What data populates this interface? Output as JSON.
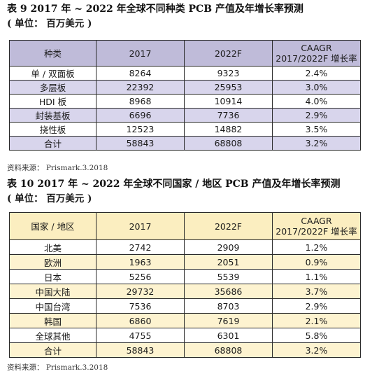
{
  "table1": {
    "title": "表 9   2017 年 ~ 2022 年全球不同种类 PCB 产值及年增长率预测",
    "unit": "( 单位： 百万美元 )",
    "headers": [
      "种类",
      "2017",
      "2022F",
      "CAAGR",
      "2017/2022F 增长率"
    ],
    "rows": [
      [
        "单 / 双面板",
        "8264",
        "9323",
        "2.4%"
      ],
      [
        "多层板",
        "22392",
        "25953",
        "3.0%"
      ],
      [
        "HDI 板",
        "8968",
        "10914",
        "4.0%"
      ],
      [
        "封装基板",
        "6696",
        "7736",
        "2.9%"
      ],
      [
        "挠性板",
        "12523",
        "14882",
        "3.5%"
      ],
      [
        "合计",
        "58843",
        "68808",
        "3.2%"
      ]
    ],
    "source": "资料来源： Prismark.3.2018",
    "colors": {
      "header": "#bfbbd9",
      "stripe": "#d8d5ec"
    }
  },
  "table2": {
    "title": "表 10   2017 年 ~ 2022 年全球不同国家 / 地区 PCB 产值及年增长率预测",
    "unit": "( 单位： 百万美元 )",
    "headers": [
      "国家 / 地区",
      "2017",
      "2022F",
      "CAAGR",
      "2017/2022F 增长率"
    ],
    "rows": [
      [
        "北美",
        "2742",
        "2909",
        "1.2%"
      ],
      [
        "欧洲",
        "1963",
        "2051",
        "0.9%"
      ],
      [
        "日本",
        "5256",
        "5539",
        "1.1%"
      ],
      [
        "中国大陆",
        "29732",
        "35686",
        "3.7%"
      ],
      [
        "中国台湾",
        "7536",
        "8703",
        "2.9%"
      ],
      [
        "韩国",
        "6860",
        "7619",
        "2.1%"
      ],
      [
        "全球其他",
        "4755",
        "6301",
        "5.8%"
      ],
      [
        "合计",
        "58843",
        "68808",
        "3.2%"
      ]
    ],
    "source": "资料来源： Prismark.3.2018",
    "colors": {
      "header": "#fbeec0",
      "stripe": "#fdf3d0"
    }
  }
}
